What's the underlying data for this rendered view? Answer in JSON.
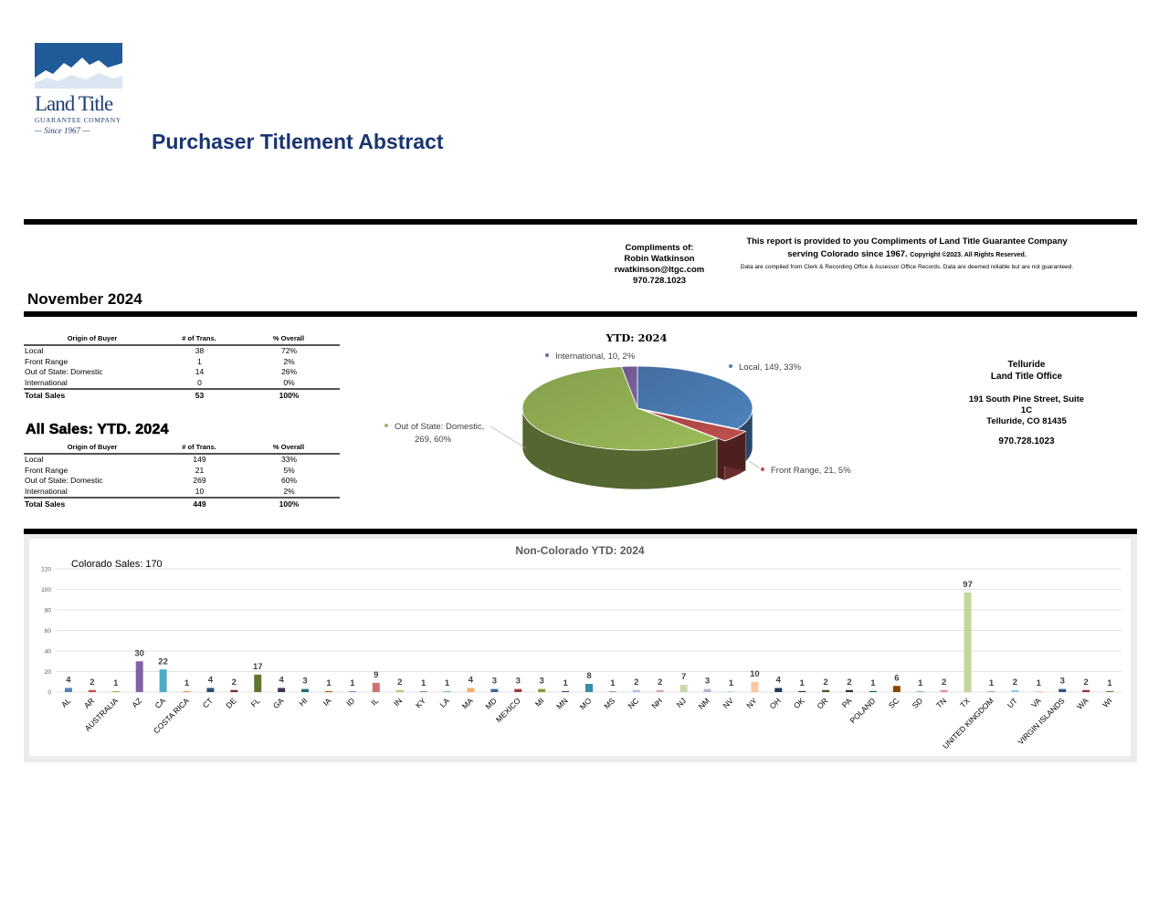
{
  "header": {
    "logo": {
      "name": "Land Title",
      "sub": "GUARANTEE COMPANY",
      "since": "— Since 1967 —"
    },
    "title": "Purchaser Titlement Abstract"
  },
  "compliments": {
    "lines": [
      "Compliments of:",
      "Robin Watkinson",
      "rwatkinson@ltgc.com",
      "970.728.1023"
    ]
  },
  "notice": {
    "line1": "This report is provided to you Compliments of Land Title Guarantee Company",
    "line2": "serving Colorado since 1967.",
    "copyright": "Copyright ©2023.  All Rights Reserved.",
    "disclaimer": "Data are compiled from Clerk & Recording Offce & Assessor Office Records.  Data are deemed reliable but are not guaranteed."
  },
  "month": {
    "title": "November 2024",
    "headers": [
      "Origin of Buyer",
      "# of Trans.",
      "% Overall"
    ],
    "rows": [
      {
        "origin": "Local",
        "trans": "38",
        "pct": "72%"
      },
      {
        "origin": "Front Range",
        "trans": "1",
        "pct": "2%"
      },
      {
        "origin": "Out of State: Domestic",
        "trans": "14",
        "pct": "26%"
      },
      {
        "origin": "International",
        "trans": "0",
        "pct": "0%"
      }
    ],
    "total": {
      "origin": "Total Sales",
      "trans": "53",
      "pct": "100%"
    }
  },
  "ytd": {
    "title": "All Sales: YTD. 2024",
    "headers": [
      "Origin of Buyer",
      "# of Trans.",
      "% Overall"
    ],
    "rows": [
      {
        "origin": "Local",
        "trans": "149",
        "pct": "33%"
      },
      {
        "origin": "Front Range",
        "trans": "21",
        "pct": "5%"
      },
      {
        "origin": "Out of State: Domestic",
        "trans": "269",
        "pct": "60%"
      },
      {
        "origin": "International",
        "trans": "10",
        "pct": "2%"
      }
    ],
    "total": {
      "origin": "Total Sales",
      "trans": "449",
      "pct": "100%"
    }
  },
  "office": {
    "name1": "Telluride",
    "name2": "Land Title Office",
    "addr1": "191 South Pine Street, Suite",
    "addr2": "1C",
    "addr3": "Telluride, CO  81435",
    "phone": "970.728.1023"
  },
  "chart_data": [
    {
      "type": "pie",
      "title": "YTD: 2024",
      "slices": [
        {
          "label": "Local, 149, 33%",
          "name": "Local",
          "value": 149,
          "color": "#4f81bd"
        },
        {
          "label": "Front Range, 21, 5%",
          "name": "Front Range",
          "value": 21,
          "color": "#c0504d"
        },
        {
          "label": "Out of State: Domestic, 269, 60%",
          "label_lines": [
            "Out of State: Domestic,",
            "269, 60%"
          ],
          "name": "Out of State: Domestic",
          "value": 269,
          "color": "#9bbb59"
        },
        {
          "label": "International, 10, 2%",
          "name": "International",
          "value": 10,
          "color": "#8064a2"
        }
      ]
    },
    {
      "type": "bar",
      "title": "Non-Colorado YTD: 2024",
      "annotation": "Colorado Sales: 170",
      "ylim": [
        0,
        120
      ],
      "yticks": [
        0,
        20,
        40,
        60,
        80,
        100,
        120
      ],
      "grid": true,
      "categories": [
        "AL",
        "AR",
        "AUSTRALIA",
        "AZ",
        "CA",
        "COSTA RICA",
        "CT",
        "DE",
        "FL",
        "GA",
        "HI",
        "IA",
        "ID",
        "IL",
        "IN",
        "KY",
        "LA",
        "MA",
        "MD",
        "MEXICO",
        "MI",
        "MN",
        "MO",
        "MS",
        "NC",
        "NH",
        "NJ",
        "NM",
        "NV",
        "NY",
        "OH",
        "OK",
        "OR",
        "PA",
        "POLAND",
        "SC",
        "SD",
        "TN",
        "TX",
        "UNITED KINGDOM",
        "UT",
        "VA",
        "VIRGIN ISLANDS",
        "WA",
        "WI"
      ],
      "values": [
        4,
        2,
        1,
        30,
        22,
        1,
        4,
        2,
        17,
        4,
        3,
        1,
        1,
        9,
        2,
        1,
        1,
        4,
        3,
        3,
        3,
        1,
        8,
        1,
        2,
        2,
        7,
        3,
        1,
        10,
        4,
        1,
        2,
        2,
        1,
        6,
        1,
        2,
        97,
        1,
        2,
        1,
        3,
        2,
        1
      ],
      "colors": [
        "#4f81bd",
        "#c0504d",
        "#9bbb59",
        "#8064a2",
        "#4bacc6",
        "#f79646",
        "#2c4d75",
        "#772c2a",
        "#5f7530",
        "#403151",
        "#276a7c",
        "#b65708",
        "#729aca",
        "#cd7371",
        "#afc97a",
        "#9983b5",
        "#6fbdd1",
        "#f9ab6b",
        "#3a679c",
        "#9f3b38",
        "#7f9c40",
        "#553f6d",
        "#358ea6",
        "#94a6b4",
        "#a8c1de",
        "#dda9a7",
        "#c8d8a9",
        "#bfb2cf",
        "#aeddea",
        "#fbc9a1",
        "#1f3a5c",
        "#5a2220",
        "#4a5b27",
        "#362b46",
        "#1f5667",
        "#874506",
        "#95b3d7",
        "#d99694",
        "#c3d69b",
        "#b2a2c7",
        "#93cddd",
        "#fac090",
        "#31557f",
        "#8e3532",
        "#6c7f3b"
      ]
    }
  ]
}
